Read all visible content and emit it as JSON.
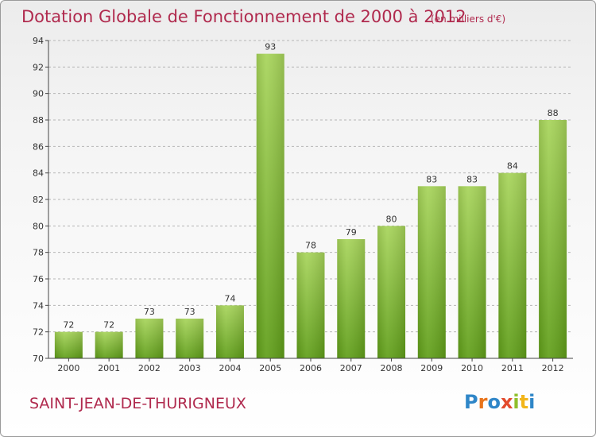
{
  "title": "Dotation Globale de Fonctionnement de 2000 à 2012",
  "subtitle": "(en milliers d'€)",
  "commune": "SAINT-JEAN-DE-THURIGNEUX",
  "logo": {
    "text": "Proxiti",
    "letter_colors": [
      "#2f86c8",
      "#e8741c",
      "#2f86c8",
      "#e34b2d",
      "#8fbf2a",
      "#f2b51a"
    ]
  },
  "colors": {
    "title": "#b02a4e",
    "bar_light": "#a7d45a",
    "bar_dark": "#5f9e18",
    "axis": "#444444",
    "grid": "#b5b5b5",
    "label": "#333333"
  },
  "chart_data": {
    "type": "bar",
    "categories": [
      "2000",
      "2001",
      "2002",
      "2003",
      "2004",
      "2005",
      "2006",
      "2007",
      "2008",
      "2009",
      "2010",
      "2011",
      "2012"
    ],
    "values": [
      72,
      72,
      73,
      73,
      74,
      93,
      78,
      79,
      80,
      83,
      83,
      84,
      88
    ],
    "ylim": [
      70,
      94
    ],
    "yticks": [
      70,
      72,
      74,
      76,
      78,
      80,
      82,
      84,
      86,
      88,
      90,
      92,
      94
    ],
    "grid": true,
    "data_labels": true
  }
}
